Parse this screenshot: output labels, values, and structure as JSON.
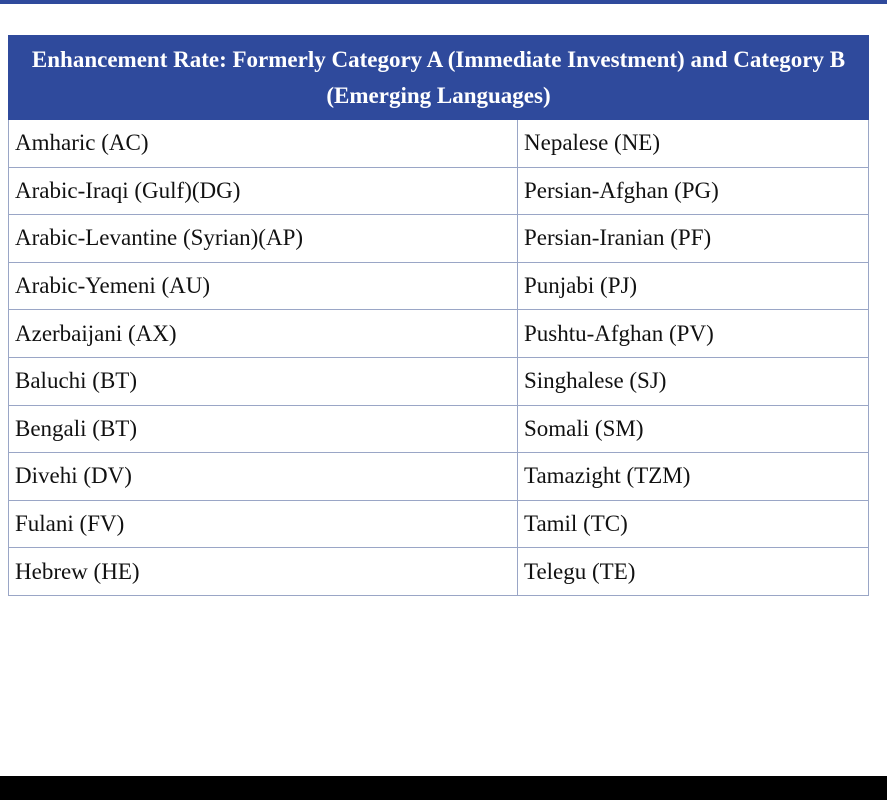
{
  "table": {
    "header": "Enhancement Rate: Formerly Category A (Immediate Investment) and Category B (Emerging Languages)",
    "rows": [
      [
        "Amharic (AC)",
        "Nepalese (NE)"
      ],
      [
        "Arabic-Iraqi (Gulf)(DG)",
        "Persian-Afghan (PG)"
      ],
      [
        "Arabic-Levantine (Syrian)(AP)",
        "Persian-Iranian (PF)"
      ],
      [
        "Arabic-Yemeni (AU)",
        "Punjabi (PJ)"
      ],
      [
        "Azerbaijani (AX)",
        "Pushtu-Afghan (PV)"
      ],
      [
        "Baluchi (BT)",
        "Singhalese (SJ)"
      ],
      [
        "Bengali (BT)",
        "Somali (SM)"
      ],
      [
        "Divehi (DV)",
        "Tamazight (TZM)"
      ],
      [
        "Fulani (FV)",
        "Tamil (TC)"
      ],
      [
        "Hebrew (HE)",
        "Telegu (TE)"
      ]
    ]
  },
  "colors": {
    "header_bg": "#2f4a9c",
    "border": "#9aa6c6",
    "bottom_bar": "#000000"
  }
}
